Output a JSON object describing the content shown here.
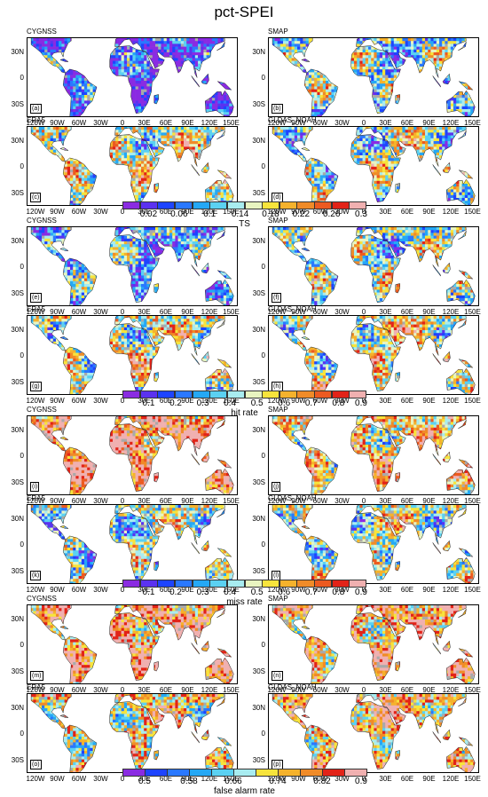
{
  "title": "pct-SPEI",
  "yticks": [
    "30N",
    "0",
    "30S"
  ],
  "xticks": [
    "120W",
    "90W",
    "60W",
    "30W",
    "0",
    "30E",
    "60E",
    "90E",
    "120E",
    "150E"
  ],
  "groups": [
    {
      "metric": "TS",
      "cb_ticks": [
        "0.02",
        "0.06",
        "0.1",
        "0.14",
        "0.18",
        "0.22",
        "0.26",
        "0.3"
      ],
      "colors": [
        "#8a2be2",
        "#5b32f0",
        "#1e44ff",
        "#2a78ff",
        "#25a8f5",
        "#5bd1f2",
        "#a8ecf0",
        "#e8f4c0",
        "#f7e43c",
        "#f5b22c",
        "#f08b28",
        "#ec5a20",
        "#e22318",
        "#f0b0b0"
      ],
      "panels": [
        {
          "name": "CYGNSS",
          "label": "(a)"
        },
        {
          "name": "SMAP",
          "label": "(b)"
        },
        {
          "name": "ERA5",
          "label": "(c)"
        },
        {
          "name": "GLDAS_NOAH",
          "label": "(d)"
        }
      ]
    },
    {
      "metric": "hit rate",
      "cb_ticks": [
        "0.1",
        "0.2",
        "0.3",
        "0.4",
        "0.5",
        "0.6",
        "0.7",
        "0.8",
        "0.9"
      ],
      "colors": [
        "#8a2be2",
        "#5b32f0",
        "#1e44ff",
        "#2a78ff",
        "#25a8f5",
        "#5bd1f2",
        "#a8ecf0",
        "#e8f4c0",
        "#f7e43c",
        "#f5b22c",
        "#f08b28",
        "#ec5a20",
        "#e22318",
        "#f0b0b0"
      ],
      "panels": [
        {
          "name": "CYGNSS",
          "label": "(e)"
        },
        {
          "name": "SMAP",
          "label": "(f)"
        },
        {
          "name": "ERA5",
          "label": "(g)"
        },
        {
          "name": "GLDAS_NOAH",
          "label": "(h)"
        }
      ]
    },
    {
      "metric": "miss rate",
      "cb_ticks": [
        "0.1",
        "0.2",
        "0.3",
        "0.4",
        "0.5",
        "0.6",
        "0.7",
        "0.8",
        "0.9"
      ],
      "colors": [
        "#8a2be2",
        "#5b32f0",
        "#1e44ff",
        "#2a78ff",
        "#25a8f5",
        "#5bd1f2",
        "#a8ecf0",
        "#e8f4c0",
        "#f7e43c",
        "#f5b22c",
        "#f08b28",
        "#ec5a20",
        "#e22318",
        "#f0b0b0"
      ],
      "panels": [
        {
          "name": "CYGNSS",
          "label": "(i)"
        },
        {
          "name": "SMAP",
          "label": "(j)"
        },
        {
          "name": "ERA5",
          "label": "(k)"
        },
        {
          "name": "GLDAS_NOAH",
          "label": "(l)"
        }
      ]
    },
    {
      "metric": "false alarm rate",
      "cb_ticks": [
        "0.5",
        "0.58",
        "0.66",
        "0.74",
        "0.82",
        "0.9"
      ],
      "colors": [
        "#8a2be2",
        "#1e44ff",
        "#2a78ff",
        "#25a8f5",
        "#5bd1f2",
        "#a8ecf0",
        "#f7e43c",
        "#f5b22c",
        "#f08b28",
        "#e22318",
        "#f0b0b0"
      ],
      "panels": [
        {
          "name": "CYGNSS",
          "label": "(m)"
        },
        {
          "name": "SMAP",
          "label": "(n)"
        },
        {
          "name": "ERA5",
          "label": "(o)"
        },
        {
          "name": "GLDAS_NOAH",
          "label": "(p)"
        }
      ]
    }
  ]
}
